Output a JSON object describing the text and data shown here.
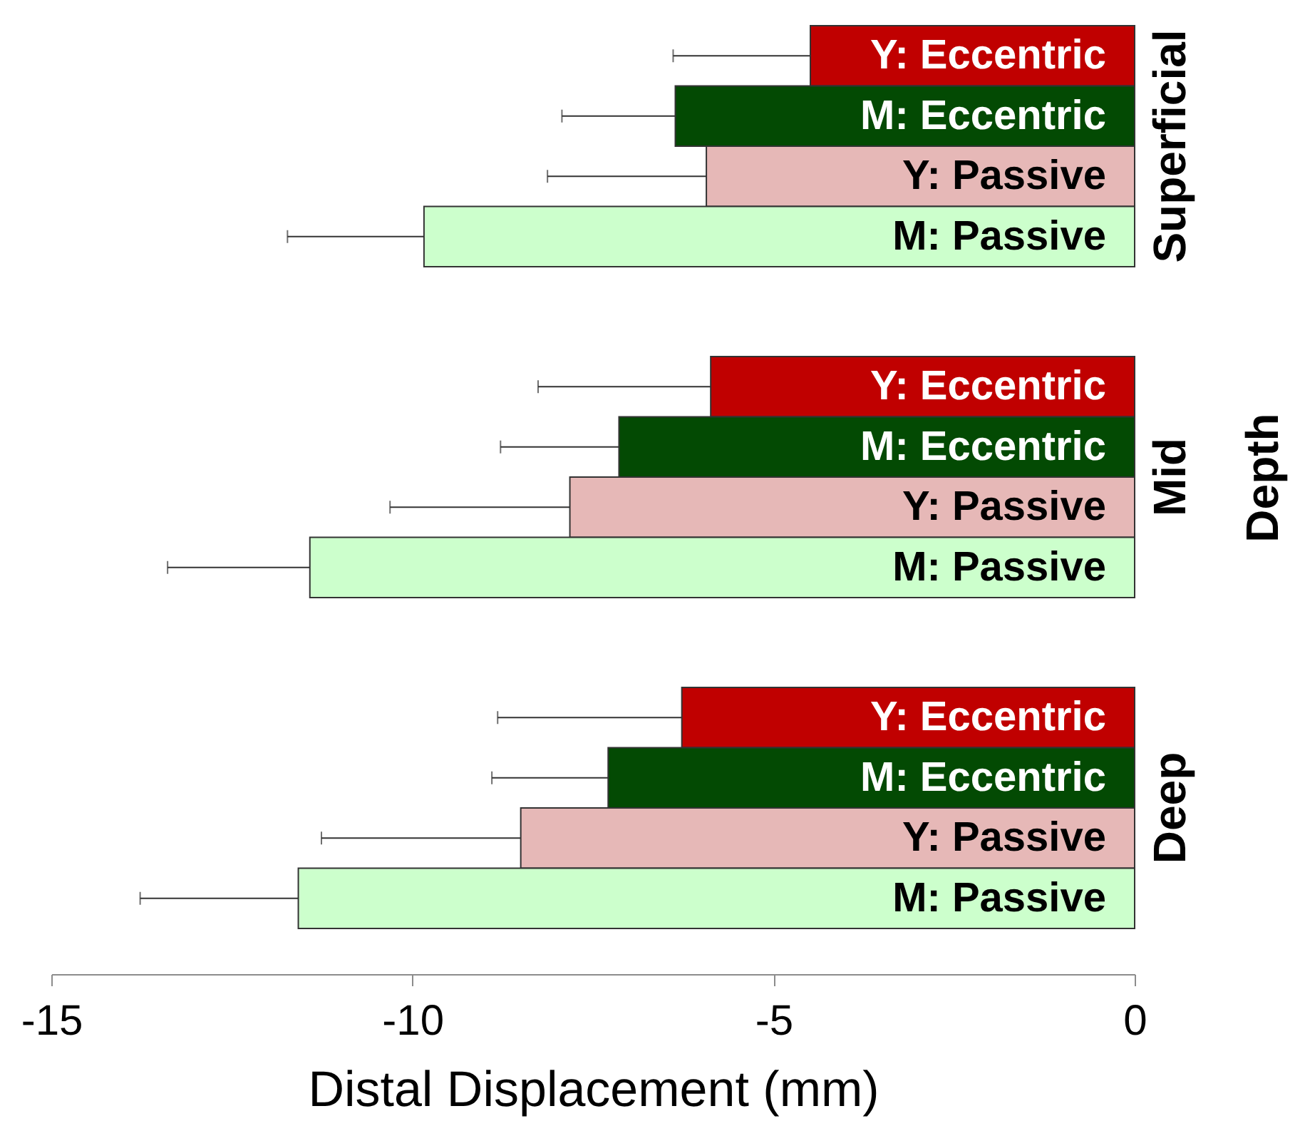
{
  "chart_data": {
    "type": "bar",
    "orientation": "horizontal",
    "xlabel": "Distal Displacement (mm)",
    "ylabel": "Depth",
    "categories": [
      "Superficial",
      "Mid",
      "Deep"
    ],
    "series": [
      {
        "name": "Y: Eccentric",
        "color": "#c00000",
        "values": [
          -4.49,
          -5.87,
          -6.27
        ],
        "errors": [
          [
            -6.39,
            -4.49
          ],
          [
            -8.26,
            -5.87
          ],
          [
            -8.82,
            -6.27
          ]
        ]
      },
      {
        "name": "M: Eccentric",
        "color": "#034a03",
        "values": [
          -6.36,
          -7.14,
          -7.29
        ],
        "errors": [
          [
            -7.93,
            -6.36
          ],
          [
            -8.78,
            -7.14
          ],
          [
            -8.9,
            -7.29
          ]
        ]
      },
      {
        "name": "Y: Passive",
        "color": "#e6b8b7",
        "values": [
          -5.93,
          -7.82,
          -8.5
        ],
        "errors": [
          [
            -8.13,
            -5.93
          ],
          [
            -10.31,
            -7.82
          ],
          [
            -11.26,
            -8.5
          ]
        ]
      },
      {
        "name": "M: Passive",
        "color": "#ccffcc",
        "values": [
          -9.84,
          -11.42,
          -11.58
        ],
        "errors": [
          [
            -11.73,
            -9.84
          ],
          [
            -13.39,
            -11.42
          ],
          [
            -13.77,
            -11.58
          ]
        ]
      }
    ],
    "xlim": [
      -15,
      0
    ],
    "xticks": [
      -15,
      -10,
      -5,
      0
    ]
  }
}
